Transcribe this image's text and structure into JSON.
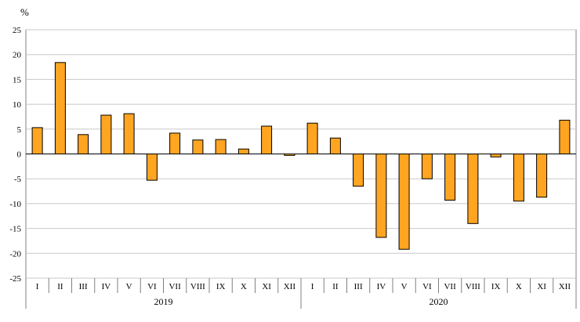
{
  "chart_data": {
    "type": "bar",
    "unit": "%",
    "ylim": [
      -25,
      25
    ],
    "ytick_step": 5,
    "grid": true,
    "bar_color": "#FFA521",
    "bar_border_color": "#000000",
    "gridline_color": "#c8c8c8",
    "axis_color": "#808080",
    "zero_line_color": "#000000",
    "groups": [
      {
        "year": "2019",
        "categories": [
          "I",
          "II",
          "III",
          "IV",
          "V",
          "VI",
          "VII",
          "VIII",
          "IX",
          "X",
          "XI",
          "XII"
        ],
        "values": [
          5.3,
          18.4,
          3.9,
          7.8,
          8.1,
          -5.3,
          4.2,
          2.8,
          2.9,
          1.0,
          5.6,
          -0.3
        ]
      },
      {
        "year": "2020",
        "categories": [
          "I",
          "II",
          "III",
          "IV",
          "V",
          "VI",
          "VII",
          "VIII",
          "IX",
          "X",
          "XI",
          "XII"
        ],
        "values": [
          6.2,
          3.2,
          -6.5,
          -16.8,
          -19.2,
          -5.0,
          -9.3,
          -14.0,
          -0.6,
          -9.5,
          -8.7,
          6.8
        ]
      }
    ]
  }
}
